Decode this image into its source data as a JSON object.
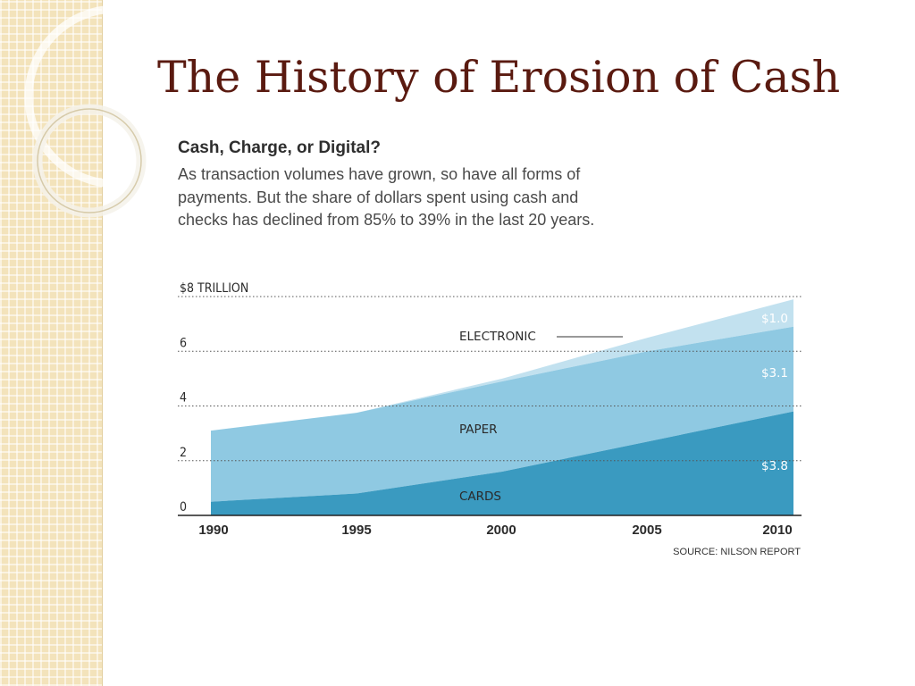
{
  "slide": {
    "title": "The History of Erosion of Cash"
  },
  "colors": {
    "title": "#5a1a10",
    "cards": "#3a9ac0",
    "paper": "#8fc9e2",
    "electronic": "#c2e1ef",
    "strip": "#f3e3bb"
  },
  "chart_data": {
    "type": "area",
    "stacked": true,
    "title": "Cash, Charge, or Digital?",
    "subtitle": "As transaction volumes have grown, so have all forms of payments. But the share of dollars spent using cash and checks has declined from 85% to 39% in the last 20 years.",
    "x": [
      1990,
      1995,
      2000,
      2005,
      2010
    ],
    "x_tick_labels": [
      "1990",
      "1995",
      "2000",
      "2005",
      "2010"
    ],
    "y_tick_labels": [
      "0",
      "2",
      "4",
      "6",
      "$8 TRILLION"
    ],
    "y_ticks": [
      0,
      2,
      4,
      6,
      8
    ],
    "ylim": [
      0,
      8
    ],
    "grid": "dotted horizontal",
    "series": [
      {
        "name": "CARDS",
        "values": [
          0.5,
          0.8,
          1.6,
          2.7,
          3.8
        ],
        "end_label": "$3.8"
      },
      {
        "name": "PAPER",
        "values": [
          2.6,
          2.95,
          3.3,
          3.3,
          3.1
        ],
        "end_label": "$3.1"
      },
      {
        "name": "ELECTRONIC",
        "values": [
          0,
          0,
          0.1,
          0.5,
          1.0
        ],
        "end_label": "$1.0"
      }
    ],
    "source": "SOURCE: NILSON REPORT"
  }
}
